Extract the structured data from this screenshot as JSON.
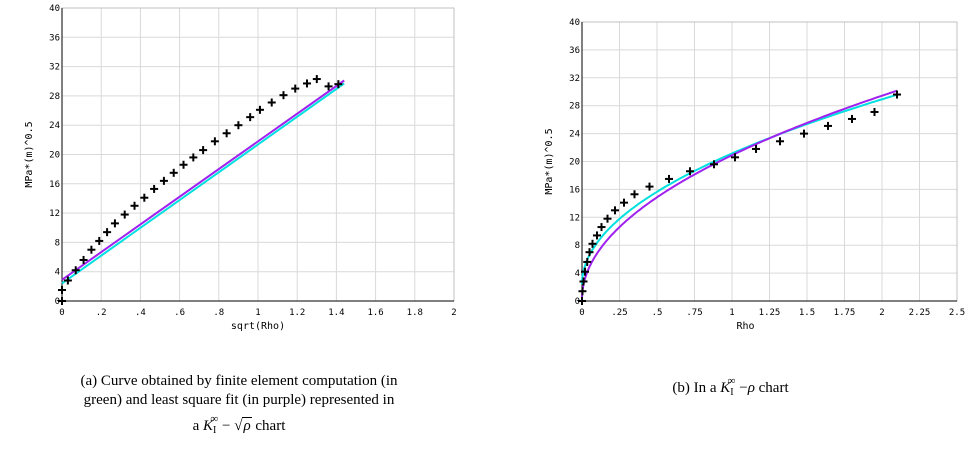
{
  "chart_data": [
    {
      "type": "line",
      "xlabel": "sqrt(Rho)",
      "ylabel": "MPa*(m)^0.5",
      "xlim": [
        0,
        2
      ],
      "ylim": [
        0,
        40
      ],
      "xticks": [
        "0",
        ".2",
        ".4",
        ".6",
        ".8",
        "1",
        "1.2",
        "1.4",
        "1.6",
        "1.8",
        "2"
      ],
      "yticks": [
        "0",
        "4",
        "8",
        "12",
        "16",
        "20",
        "24",
        "28",
        "32",
        "36",
        "40"
      ],
      "grid": true,
      "series": [
        {
          "color": "#00e0e0",
          "style": "line",
          "x": [
            0,
            1.44
          ],
          "y": [
            2.4,
            29.7
          ]
        },
        {
          "color": "#a020f0",
          "style": "line",
          "x": [
            0,
            1.44
          ],
          "y": [
            2.9,
            30.1
          ]
        },
        {
          "color": "#000000",
          "style": "cross",
          "x": [
            0,
            0,
            0.03,
            0.07,
            0.11,
            0.15,
            0.19,
            0.23,
            0.27,
            0.32,
            0.37,
            0.42,
            0.47,
            0.52,
            0.57,
            0.62,
            0.67,
            0.72,
            0.78,
            0.84,
            0.9,
            0.96,
            1.01,
            1.07,
            1.13,
            1.19,
            1.25,
            1.3,
            1.36,
            1.41
          ],
          "y": [
            0,
            1.5,
            2.8,
            4.2,
            5.6,
            7.0,
            8.2,
            9.4,
            10.6,
            11.8,
            13.0,
            14.1,
            15.3,
            16.4,
            17.5,
            18.6,
            19.6,
            20.6,
            21.8,
            22.9,
            24.0,
            25.1,
            26.1,
            27.1,
            28.1,
            29.0,
            29.7,
            30.3,
            29.3,
            29.6
          ]
        }
      ]
    },
    {
      "type": "line",
      "xlabel": "Rho",
      "ylabel": "MPa*(m)^0.5",
      "xlim": [
        0,
        2.5
      ],
      "ylim": [
        0,
        40
      ],
      "xticks": [
        "0",
        ".25",
        ".5",
        ".75",
        "1",
        "1.25",
        "1.5",
        "1.75",
        "2",
        "2.25",
        "2.5"
      ],
      "yticks": [
        "0",
        "4",
        "8",
        "12",
        "16",
        "20",
        "24",
        "28",
        "32",
        "36",
        "40"
      ],
      "grid": true,
      "series": [
        {
          "color": "#00e0e0",
          "style": "line",
          "fit": "sqrt",
          "a": 2.4,
          "b": 18.75,
          "xmax": 2.1
        },
        {
          "color": "#a020f0",
          "style": "line",
          "fit": "sqrt",
          "a": 0.3,
          "b": 20.6,
          "xmax": 2.1
        },
        {
          "color": "#000000",
          "style": "cross",
          "x": [
            0,
            0.003,
            0.01,
            0.02,
            0.035,
            0.05,
            0.07,
            0.1,
            0.13,
            0.17,
            0.22,
            0.28,
            0.35,
            0.45,
            0.58,
            0.72,
            0.88,
            1.02,
            1.16,
            1.32,
            1.48,
            1.64,
            1.8,
            1.95,
            2.1
          ],
          "y": [
            0,
            1.4,
            2.8,
            4.2,
            5.6,
            7.0,
            8.2,
            9.4,
            10.6,
            11.8,
            13.0,
            14.1,
            15.3,
            16.4,
            17.5,
            18.6,
            19.6,
            20.6,
            21.8,
            22.9,
            24.0,
            25.1,
            26.1,
            27.1,
            29.6
          ]
        }
      ]
    }
  ],
  "captions": {
    "a": {
      "line1": "(a)  Curve obtained by finite element computation (in",
      "line2": "green) and least square fit (in purple) represented in",
      "pre": "a ",
      "K": "K",
      "sub": "I",
      "sup": "∞",
      "mid": " − ",
      "sqrt": "ρ",
      "post": " chart"
    },
    "b": {
      "pre": "(b)  In a ",
      "K": "K",
      "sub": "I",
      "sup": "∞",
      "mid": " −",
      "rho": "ρ",
      "post": " chart"
    }
  }
}
